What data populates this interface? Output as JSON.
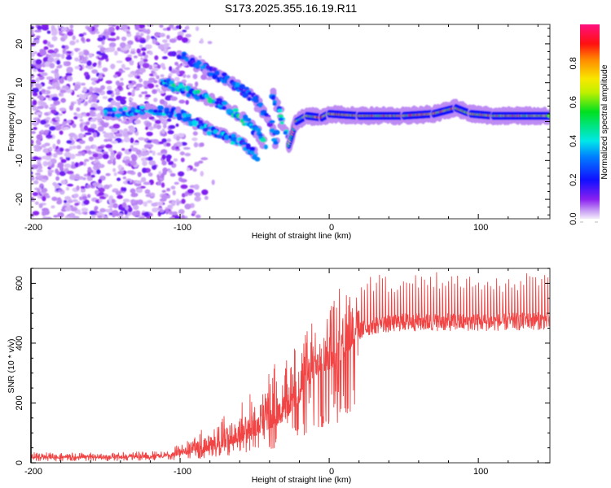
{
  "figure": {
    "title": "S173.2025.355.16.19.R11"
  },
  "chart_data": [
    {
      "type": "heatmap",
      "name": "spectrogram",
      "title": "S173.2025.355.16.19.R11",
      "xlabel": "Height of straight line (km)",
      "ylabel": "Frequency (Hz)",
      "xlim": [
        -200,
        148
      ],
      "ylim": [
        -25,
        25
      ],
      "xticks": [
        -200,
        -100,
        0,
        100
      ],
      "yticks": [
        -20,
        -10,
        0,
        10,
        20
      ],
      "xtick_labels": [
        "-200",
        "-100",
        "0",
        "100"
      ],
      "ytick_labels": [
        "-20",
        "-10",
        "0",
        "10",
        "20"
      ],
      "grid": false,
      "colormap": "rainbow",
      "colorbar": {
        "label": "Normalized spectral amplitude",
        "range": [
          0,
          1
        ],
        "ticks": [
          0.0,
          0.2,
          0.4,
          0.6,
          0.8
        ],
        "tick_labels": [
          "0.0",
          "0.2",
          "0.4",
          "0.6",
          "0.8"
        ],
        "stops": [
          "#ffffff",
          "#e0c8f8",
          "#9b30ff",
          "#1010ff",
          "#00e0e0",
          "#00e000",
          "#f0f000",
          "#ff8000",
          "#ff1010",
          "#ff1080"
        ]
      },
      "features": [
        {
          "name": "diffuse noise",
          "x_range": [
            -200,
            -100
          ],
          "y_range": [
            -25,
            25
          ],
          "amplitude": 0.1
        },
        {
          "name": "descending branch 1",
          "points": [
            [
              -150,
              2
            ],
            [
              -120,
              3
            ],
            [
              -100,
              2
            ],
            [
              -80,
              -2
            ],
            [
              -60,
              -5
            ],
            [
              -48,
              -9
            ]
          ],
          "amplitude": 0.3
        },
        {
          "name": "descending branch 2",
          "points": [
            [
              -112,
              10
            ],
            [
              -95,
              8
            ],
            [
              -75,
              5
            ],
            [
              -58,
              1
            ],
            [
              -48,
              -3
            ],
            [
              -42,
              -6
            ]
          ],
          "amplitude": 0.35
        },
        {
          "name": "descending branch 3",
          "points": [
            [
              -100,
              17
            ],
            [
              -85,
              14
            ],
            [
              -65,
              10
            ],
            [
              -50,
              6
            ],
            [
              -40,
              0
            ],
            [
              -34,
              -6
            ]
          ],
          "amplitude": 0.25
        },
        {
          "name": "descending branch 4",
          "points": [
            [
              -38,
              7
            ],
            [
              -34,
              3
            ],
            [
              -30,
              -2
            ],
            [
              -27,
              -5
            ]
          ],
          "amplitude": 0.35
        },
        {
          "name": "main ridge",
          "points": [
            [
              -27,
              -6
            ],
            [
              -22,
              0
            ],
            [
              -15,
              1.5
            ],
            [
              -5,
              1
            ],
            [
              0,
              2
            ],
            [
              20,
              1.5
            ],
            [
              50,
              1.5
            ],
            [
              70,
              2
            ],
            [
              85,
              3.5
            ],
            [
              95,
              2
            ],
            [
              110,
              1.5
            ],
            [
              148,
              1.5
            ]
          ],
          "amplitude": 0.9
        }
      ]
    },
    {
      "type": "line",
      "name": "snr",
      "xlabel": "Height of straight line (km)",
      "ylabel": "SNR (10 * v/v)",
      "xlim": [
        -200,
        148
      ],
      "ylim": [
        0,
        650
      ],
      "xticks": [
        -200,
        -100,
        0,
        100
      ],
      "yticks": [
        0,
        200,
        400,
        600
      ],
      "xtick_labels": [
        "-200",
        "-100",
        "0",
        "100"
      ],
      "ytick_labels": [
        "0",
        "200",
        "400",
        "600"
      ],
      "grid": false,
      "series": [
        {
          "name": "SNR",
          "color": "#f03030",
          "envelope": {
            "x": [
              -200,
              -150,
              -110,
              -100,
              -80,
              -60,
              -45,
              -30,
              -20,
              -10,
              0,
              10,
              20,
              30,
              50,
              80,
              110,
              148
            ],
            "baseline": [
              15,
              15,
              18,
              25,
              40,
              70,
              100,
              140,
              200,
              290,
              310,
              350,
              420,
              440,
              450,
              450,
              450,
              455
            ],
            "peak": [
              35,
              35,
              40,
              65,
              130,
              200,
              300,
              360,
              420,
              480,
              560,
              600,
              620,
              630,
              630,
              640,
              630,
              640
            ]
          }
        }
      ]
    }
  ]
}
